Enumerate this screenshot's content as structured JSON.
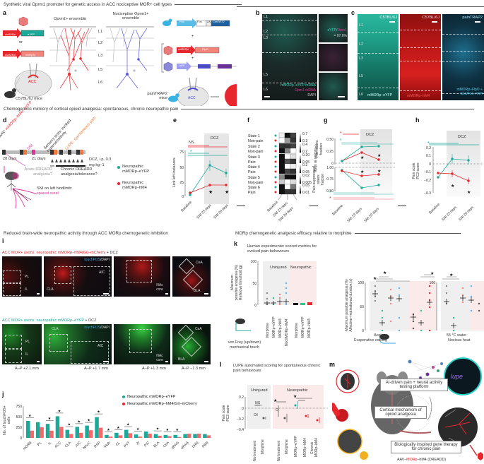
{
  "sections": {
    "top": "Synthetic viral Oprm1 promoter for genetic access in ACC nociceptive MOR+ cell types",
    "middle": "Chemogenetic mimicry of cortical opioid analgesia: spontaneous, chronic neuropathic pain",
    "bottom_left": "Reduced brain-wide neuropathic activity through ACC MORp chemogenetic inhibition",
    "bottom_right": "MORp chemogenetic analgesic efficacy relative to morphine"
  },
  "panel_labels": [
    "a",
    "b",
    "c",
    "d",
    "e",
    "f",
    "g",
    "h",
    "i",
    "j",
    "k",
    "l",
    "m"
  ],
  "panel_a": {
    "construct1_promoter": "mMORp",
    "construct1_gene": "eYFP",
    "or_label": "or",
    "construct2_promoter": "mMORp",
    "construct2_gene": "hM4(Gi)",
    "ensemble1_title": "Oprm1+ ensemble",
    "ensemble2_title": "Nociceptive Oprm1+ ensemble",
    "layers": [
      "L1",
      "L2",
      "L3",
      "L5",
      "L6"
    ],
    "acc_label": "ACC",
    "mouse_label": "C57BL/6J mice",
    "fos_promoter": "Fos",
    "fos_box1": "Fos",
    "fos_box2": "2A",
    "fos_box3": "CreERT2",
    "plus": "+",
    "flpo_promoter": "mMORp",
    "flpo_gene": "FlpO",
    "ef_promoter": "nEF",
    "ef_gene1": "hM4",
    "ef_gene2": "hM4",
    "paintrap_label": "painTRAP2 mice",
    "venn_left": "Oprm1",
    "venn_right": "Fos"
  },
  "panel_b": {
    "layers": [
      "L1",
      "L2",
      "L3",
      "L5",
      "L6"
    ],
    "legend1": "mMORp–eYFP mRNA",
    "legend2": "Opm1 mRNA",
    "legend3": "DAPI",
    "inset_label1": "eYFP/",
    "inset_label2": "Opm1",
    "inset_pct": "= 97.6%"
  },
  "panel_c": {
    "col1_title": "C57BL/6J",
    "col2_title": "C57BL/6J",
    "col3_title": "painTRAP2",
    "layers": [
      "L1",
      "L2",
      "L3",
      "L5",
      "L6"
    ],
    "col1_caption": "mMORp–eYFP",
    "col2_caption": "mMORp–hM4",
    "col3_caption": "mMORp–FlpO + Con/Fon–hM4"
  },
  "panel_d": {
    "label_aav_prefix": "AAV: ",
    "label_aav": "mMORp–hM4/–eYFP",
    "label_sni": "SNI",
    "label_sensory": "Sensory tests: evoked hypersensitivity",
    "label_lupe": "LUPE: spontaneous pain",
    "days1": "28 days",
    "days2": "21 days",
    "dcz": "DCZ, i.p. 0.3 mg kg−1",
    "acute": "Acute DREADD analgesia?",
    "chronic": "Chronic DREADD analgesia/tolerance?",
    "sni_desc": "SNI on left hindlimb:",
    "sni_desc2": "spared sural",
    "legend1": "Neuropathic mMORp–eYFP",
    "legend2": "Neuropathic mMORp–hM4"
  },
  "panel_f": {
    "rows": [
      "State 1",
      "Non-pain",
      "State 2",
      "Non-pain",
      "State 3",
      "Pain",
      "State 4",
      "Pain",
      "State 5",
      "Non-pain",
      "State 6",
      "Pain"
    ],
    "scales": [
      [
        "0.7",
        "0.3"
      ],
      [
        "0.4",
        "0.2"
      ],
      [
        "0.20",
        "0.05"
      ],
      [
        "0.2",
        "0.05"
      ],
      [
        "0.02",
        "0.005"
      ],
      [
        "0.05",
        "0.01"
      ]
    ],
    "colorbar_label": "Fraction in state",
    "columns": [
      "Baseline",
      "SNI 23 days",
      "SNI 29 days"
    ]
  },
  "panel_i": {
    "row1_title_a": "ACC MOR+ axons: neuropathic mMORp–hM4(Gi)–mCherry",
    "row1_title_b": " + DCZ",
    "row2_title_a": "ACC MOR+ axons: neuropathic mMORp–eYFP",
    "row2_title_b": " + DCZ",
    "stain_a": "touchFOS",
    "stain_b": "/DAPI",
    "regions": [
      "PL",
      "IL",
      "CLA",
      "AIC",
      "NAc core",
      "CeA",
      "BLA"
    ],
    "ap": [
      "A–P +2.1 mm",
      "A–P +1.7 mm",
      "A–P +1.3 mm",
      "A–P −1.3 mm"
    ]
  },
  "panel_k": {
    "subtitle": "Human experimenter scored metrics for evoked pain behaviours",
    "ylabel1": "Maximum possible analgesia (%) Reflexive threshold (g)",
    "ylabel2": "Maximum possible analgesia (%) Affective–motivational duration (s)",
    "group_uninjured": "Uninjured",
    "group_neuropathic": "Neuropathic",
    "xticks1": [
      "Morphine",
      "MORp–eYFP",
      "MORp–hM4",
      "Noci/MORp–hM4",
      "Morphine",
      "MORp–eYFP",
      "MORp–hM4"
    ],
    "test1": "von Frey (up/down) mechanical touch",
    "test2a": "Acetone",
    "test2b": "Evaporative cooling",
    "test3a": "55 °C water",
    "test3b": "Noxious heat"
  },
  "panel_l": {
    "subtitle": "LUPE automated scoring for spontaneous chronic pain behaviours",
    "group_uninjured": "Uninjured",
    "group_neuropathic": "Neuropathic",
    "ylabel": "Pain scale PC2 score",
    "ns": "NS",
    "xticks": [
      "No treatment",
      "Morphine",
      "No treatment",
      "Morphine",
      "MORp–eYFP",
      "MORp–hM4",
      "Chronic MORp–hM4"
    ]
  },
  "panel_m": {
    "box1": "AI-driven pain + neural activity testing platform",
    "box2": "Cortical mechanism of opioid analgesia",
    "box3": "Biologically inspired gene therapy for chronic pain",
    "footer_a": "AAV–",
    "footer_b": "MORp",
    "footer_c": "–hM4 (DREADD)",
    "logo": "lupe"
  },
  "colors": {
    "teal": "#1aa99a",
    "red": "#e8262d",
    "salmon": "#f4837a",
    "blue": "#6ab0e8",
    "dcz_shade": "#e6e6e6",
    "magenta": "#e0339a",
    "orange": "#f07a3c"
  },
  "chart_data": [
    {
      "panel": "e",
      "type": "line",
      "title": "",
      "xlabel": "",
      "ylabel": "Lick left instances",
      "categories": [
        "Baseline",
        "SNI 23 days",
        "SNI 29 days"
      ],
      "series": [
        {
          "name": "Neuropathic mMORp–eYFP",
          "values": [
            3,
            53,
            41
          ],
          "color": "#1aa99a"
        },
        {
          "name": "Neuropathic mMORp–hM4",
          "values": [
            5,
            19,
            19
          ],
          "color": "#e8262d"
        }
      ],
      "yticks": [
        0,
        25,
        50,
        75
      ],
      "ylim": [
        0,
        80
      ],
      "annotations": [
        "DCZ",
        "NS",
        "*"
      ],
      "shaded_region": "DCZ (SNI 23–29 days)"
    },
    {
      "panel": "g",
      "type": "line",
      "ylabel_top": "Pain states fraction",
      "ylabel_bottom": "Pain-suppressed states fraction",
      "categories": [
        "Baseline",
        "SNI 23 days",
        "SNI 29 days"
      ],
      "series": [
        {
          "name": "eYFP pain states",
          "values": [
            0.04,
            0.32,
            0.34
          ],
          "color": "#1aa99a"
        },
        {
          "name": "hM4 pain states",
          "values": [
            0.04,
            0.2,
            0.07
          ],
          "color": "#e8262d"
        },
        {
          "name": "eYFP pain-suppressed",
          "values": [
            0.93,
            0.54,
            0.6
          ],
          "color": "#1aa99a"
        },
        {
          "name": "hM4 pain-suppressed",
          "values": [
            0.92,
            0.81,
            0.84
          ],
          "color": "#e8262d"
        }
      ],
      "yticks_top": [
        0,
        0.25,
        0.5
      ],
      "yticks_bottom": [
        0.5,
        0.75,
        1.0
      ],
      "annotations": [
        "DCZ",
        "*"
      ]
    },
    {
      "panel": "h",
      "type": "line",
      "ylabel": "Pain scale PC2 score",
      "categories": [
        "Baseline",
        "SNI 23 days",
        "SNI 29 days"
      ],
      "series": [
        {
          "name": "Neuropathic mMORp–eYFP",
          "values": [
            -0.17,
            0.06,
            0.04
          ],
          "color": "#1aa99a"
        },
        {
          "name": "Neuropathic mMORp–hM4",
          "values": [
            -0.12,
            -0.13,
            -0.2
          ],
          "color": "#e8262d"
        }
      ],
      "yticks": [
        -0.3,
        -0.2,
        -0.1,
        0,
        0.1,
        0.2
      ],
      "ylim": [
        -0.3,
        0.25
      ],
      "annotations": [
        "DCZ",
        "*"
      ]
    },
    {
      "panel": "j",
      "type": "bar",
      "ylabel": "No. of touchFOS+ cells",
      "categories": [
        "mORB",
        "PL",
        "IL",
        "ACC",
        "CLA",
        "AIC",
        "NAcC",
        "RSP",
        "lHab",
        "CL",
        "PVT",
        "ZI",
        "PIC",
        "BLA",
        "CeA",
        "dPAG",
        "vlPAG",
        "DRN",
        "PBN"
      ],
      "series": [
        {
          "name": "Neuropathic mMORp–eYFP",
          "values": [
            400,
            370,
            330,
            510,
            190,
            260,
            290,
            490,
            70,
            120,
            190,
            80,
            150,
            90,
            70,
            70,
            90,
            90,
            90
          ],
          "color": "#1aa99a"
        },
        {
          "name": "Neuropathic mMORp–hM4(Gi)–mCherry",
          "values": [
            170,
            250,
            170,
            260,
            90,
            120,
            180,
            240,
            30,
            60,
            110,
            30,
            100,
            50,
            40,
            20,
            100,
            100,
            60
          ],
          "color": "#e8262d"
        }
      ],
      "yticks": [
        0,
        250,
        500,
        750
      ],
      "ylim": [
        0,
        750
      ],
      "significant": [
        "mORB",
        "IL",
        "ACC",
        "CLA",
        "AIC",
        "NAcC",
        "RSP",
        "lHab",
        "CL",
        "PVT",
        "ZI",
        "BLA",
        "CeA",
        "dPAG"
      ],
      "legend_position": "top-right"
    },
    {
      "panel": "k-vonfrey",
      "type": "scatter",
      "ylabel": "Maximum possible analgesia (%) Reflexive threshold (g)",
      "categories": [
        "Morphine",
        "MORp–eYFP",
        "MORp–hM4",
        "Noci/MORp–hM4",
        "Morphine",
        "MORp–eYFP",
        "MORp–hM4"
      ],
      "means": [
        5,
        5,
        8,
        9,
        0,
        0,
        1
      ],
      "yticks": [
        0,
        50,
        100
      ],
      "ylim": [
        0,
        100
      ]
    },
    {
      "panel": "k-acetone",
      "type": "scatter",
      "ylabel": "Maximum possible analgesia (%) Affective–motivational duration (s)",
      "categories": [
        "Morphine",
        "MORp–eYFP",
        "MORp–hM4",
        "Noci/MORp–hM4",
        "Morphine",
        "MORp–eYFP",
        "MORp–hM4"
      ],
      "means": [
        77,
        15,
        66,
        63,
        28,
        16,
        59
      ],
      "yticks": [
        0,
        50,
        100
      ],
      "ylim": [
        0,
        100
      ]
    },
    {
      "panel": "k-heat",
      "type": "scatter",
      "ylabel": "Maximum possible analgesia (%) Affective–motivational duration (s)",
      "categories": [
        "Morphine",
        "MORp–eYFP",
        "MORp–hM4",
        "Noci/MORp–hM4",
        "Morphine",
        "MORp–eYFP",
        "MORp–hM4"
      ],
      "means": [
        59,
        11,
        65,
        60,
        34,
        12,
        54
      ],
      "yticks": [
        0,
        50,
        100
      ],
      "ylim": [
        0,
        100
      ]
    },
    {
      "panel": "l",
      "type": "scatter",
      "ylabel": "Pain scale PC2 score",
      "categories": [
        "No treatment",
        "Morphine",
        "No treatment",
        "Morphine",
        "MORp–eYFP",
        "MORp–hM4",
        "Chronic MORp–hM4"
      ],
      "values": [
        -0.12,
        -0.17,
        -0.05,
        -0.17,
        0.06,
        -0.14,
        -0.21
      ],
      "yticks": [
        -0.4,
        -0.2,
        0,
        0.2
      ],
      "ylim": [
        -0.4,
        0.25
      ]
    }
  ]
}
